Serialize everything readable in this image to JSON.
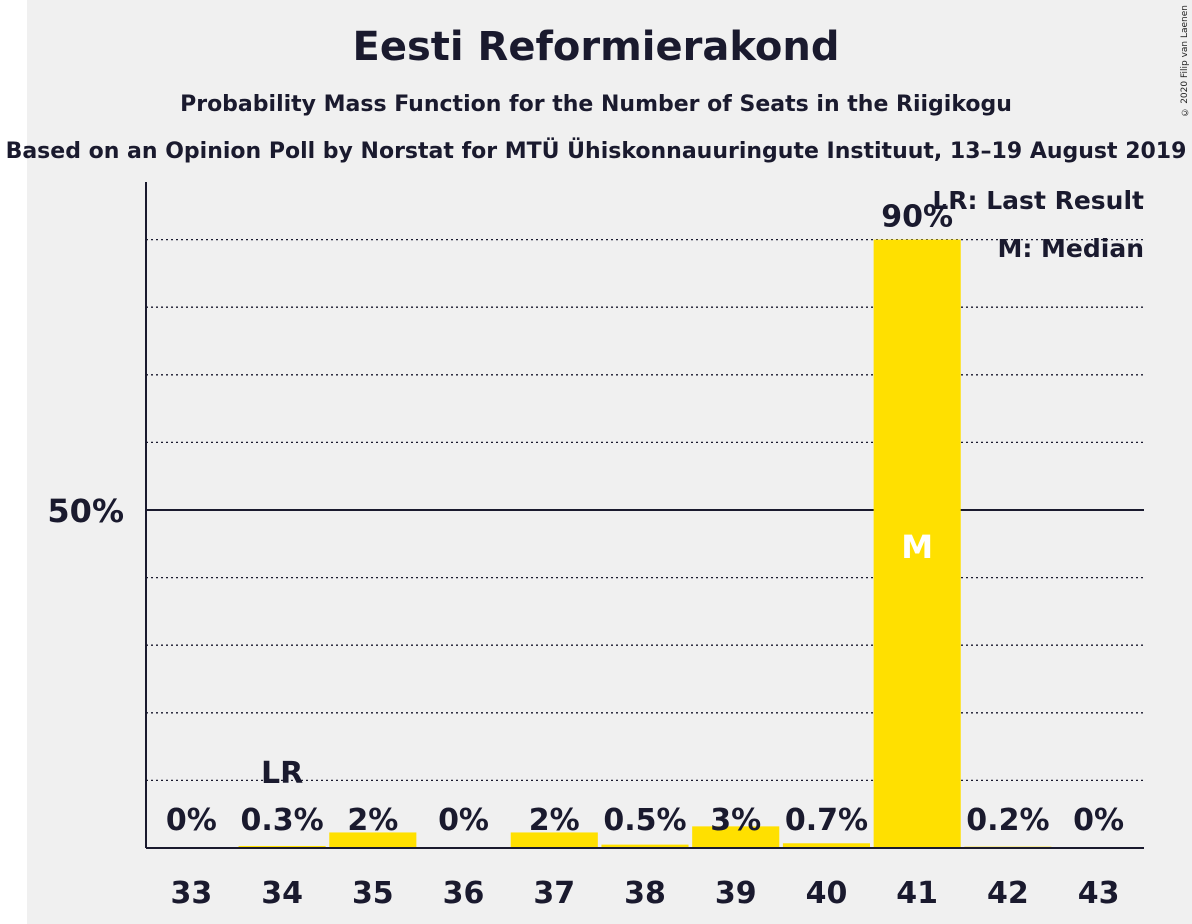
{
  "chart_data": {
    "type": "bar",
    "title": "Eesti Reformierakond",
    "subtitle": "Probability Mass Function for the Number of Seats in the Riigikogu",
    "caption": "Based on an Opinion Poll by Norstat for MTÜ Ühiskonnauuringute Instituut, 13–19 August 2019",
    "copyright": "© 2020 Filip van Laenen",
    "categories": [
      "33",
      "34",
      "35",
      "36",
      "37",
      "38",
      "39",
      "40",
      "41",
      "42",
      "43"
    ],
    "values": [
      0,
      0.3,
      2.3,
      0,
      2.3,
      0.5,
      3.2,
      0.7,
      90,
      0.2,
      0
    ],
    "value_labels": [
      "0%",
      "0.3%",
      "2%",
      "0%",
      "2%",
      "0.5%",
      "3%",
      "0.7%",
      "90%",
      "0.2%",
      "0%"
    ],
    "ylim": [
      0,
      98
    ],
    "y_ticks": [
      {
        "value": 50,
        "label": "50%"
      }
    ],
    "gridlines": [
      10,
      20,
      30,
      40,
      60,
      70,
      80,
      90
    ],
    "bar_color": "#ffe000",
    "last_result_category": "34",
    "last_result_marker": "LR",
    "median_category": "41",
    "median_marker": "M",
    "legend": [
      "LR: Last Result",
      "M: Median"
    ],
    "legend_position": "top-right"
  }
}
